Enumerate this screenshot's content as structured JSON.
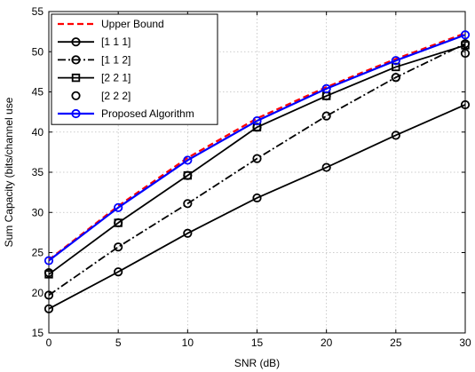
{
  "chart_data": {
    "type": "line",
    "title": "",
    "xlabel": "SNR (dB)",
    "ylabel": "Sum Capacity (bits/channel use",
    "x": [
      0,
      5,
      10,
      15,
      20,
      25,
      30
    ],
    "xlim": [
      0,
      30
    ],
    "ylim": [
      15,
      55
    ],
    "xticks": [
      "0",
      "5",
      "10",
      "15",
      "20",
      "25",
      "30"
    ],
    "yticks": [
      "15",
      "20",
      "25",
      "30",
      "35",
      "40",
      "45",
      "50",
      "55"
    ],
    "grid": true,
    "legend_position": "top-left",
    "series": [
      {
        "name": "Upper Bound",
        "values": [
          24.1,
          30.8,
          36.8,
          41.7,
          45.6,
          49.1,
          52.3
        ],
        "color": "#ff0000",
        "line": "dashed",
        "marker": "none"
      },
      {
        "name": "[1 1 1]",
        "values": [
          18.0,
          22.6,
          27.4,
          31.8,
          35.6,
          39.6,
          43.4
        ],
        "color": "#000000",
        "line": "solid",
        "marker": "circle"
      },
      {
        "name": "[1 1 2]",
        "values": [
          19.7,
          25.7,
          31.1,
          36.7,
          42.0,
          46.8,
          51.0
        ],
        "color": "#000000",
        "line": "dashdot",
        "marker": "circle"
      },
      {
        "name": "[2 2 1]",
        "values": [
          22.3,
          28.7,
          34.6,
          40.6,
          44.5,
          48.1,
          50.8
        ],
        "color": "#000000",
        "line": "solid",
        "marker": "square"
      },
      {
        "name": "[2 2 2]",
        "values": [
          22.5,
          28.7,
          34.6,
          40.6,
          44.5,
          46.8,
          49.8
        ],
        "color": "#000000",
        "line": "none",
        "marker": "circle"
      },
      {
        "name": "Proposed Algorithm",
        "values": [
          24.0,
          30.6,
          36.5,
          41.4,
          45.4,
          48.9,
          52.1
        ],
        "color": "#0000ff",
        "line": "solid",
        "marker": "circle"
      }
    ]
  }
}
